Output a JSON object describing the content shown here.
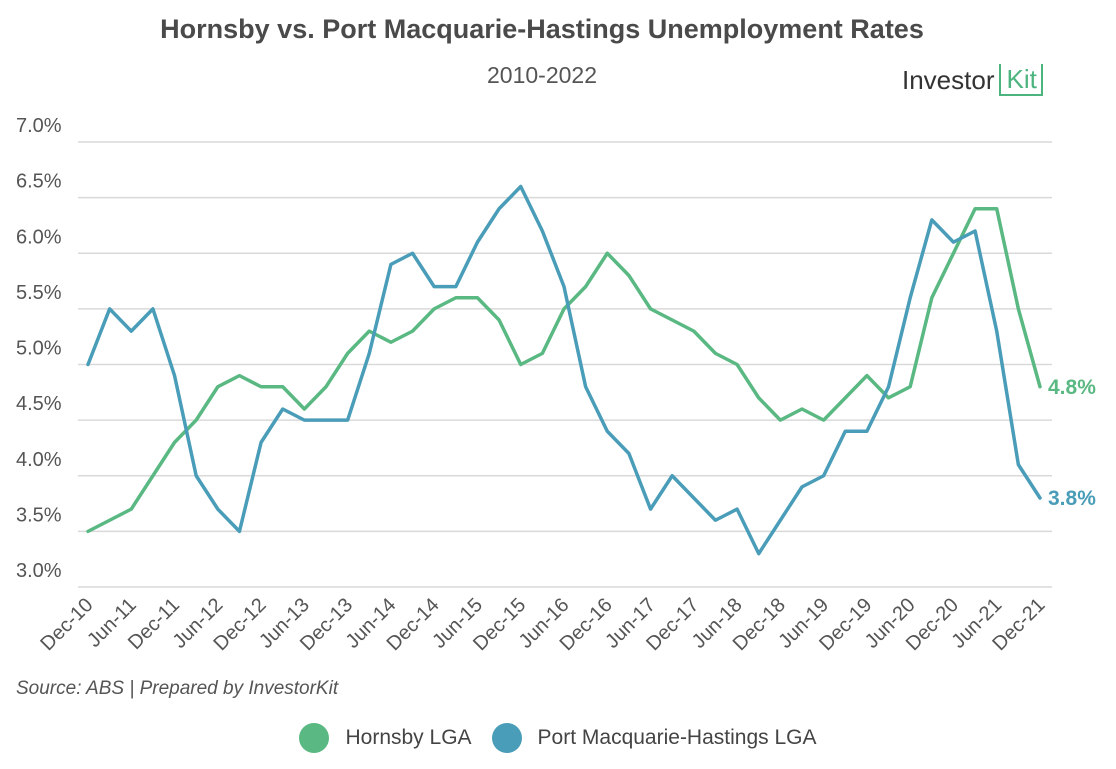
{
  "brand": {
    "name": "Investor",
    "mark": "Kit",
    "accent": "#4cb47e"
  },
  "source_note": "Source:  ABS | Prepared by InvestorKit",
  "chart_data": {
    "type": "line",
    "title": "Hornsby vs. Port Macquarie-Hastings Unemployment Rates",
    "subtitle": "2010-2022",
    "xlabel": "",
    "ylabel": "",
    "ylim": [
      3.0,
      7.0
    ],
    "y_ticks": [
      "3.0%",
      "3.5%",
      "4.0%",
      "4.5%",
      "5.0%",
      "5.5%",
      "6.0%",
      "6.5%",
      "7.0%"
    ],
    "grid": true,
    "x_tick_labels": [
      "Dec-10",
      "Jun-11",
      "Dec-11",
      "Jun-12",
      "Dec-12",
      "Jun-13",
      "Dec-13",
      "Jun-14",
      "Dec-14",
      "Jun-15",
      "Dec-15",
      "Jun-16",
      "Dec-16",
      "Jun-17",
      "Dec-17",
      "Jun-18",
      "Dec-18",
      "Jun-19",
      "Dec-19",
      "Jun-20",
      "Dec-20",
      "Jun-21",
      "Dec-21"
    ],
    "legend_position": "bottom",
    "series": [
      {
        "name": "Hornsby LGA",
        "color": "#5ab882",
        "end_label": "4.8%",
        "values": [
          3.5,
          3.6,
          3.7,
          4.0,
          4.3,
          4.5,
          4.8,
          4.9,
          4.8,
          4.8,
          4.6,
          4.8,
          5.1,
          5.3,
          5.2,
          5.3,
          5.5,
          5.6,
          5.6,
          5.4,
          5.0,
          5.1,
          5.5,
          5.7,
          6.0,
          5.8,
          5.5,
          5.4,
          5.3,
          5.1,
          5.0,
          4.7,
          4.5,
          4.6,
          4.5,
          4.7,
          4.9,
          4.7,
          4.8,
          5.6,
          6.0,
          6.4,
          6.4,
          5.5,
          4.8
        ]
      },
      {
        "name": "Port Macquarie-Hastings LGA",
        "color": "#4a9db8",
        "end_label": "3.8%",
        "values": [
          5.0,
          5.5,
          5.3,
          5.5,
          4.9,
          4.0,
          3.7,
          3.5,
          4.3,
          4.6,
          4.5,
          4.5,
          4.5,
          5.1,
          5.9,
          6.0,
          5.7,
          5.7,
          6.1,
          6.4,
          6.6,
          6.2,
          5.7,
          4.8,
          4.4,
          4.2,
          3.7,
          4.0,
          3.8,
          3.6,
          3.7,
          3.3,
          3.6,
          3.9,
          4.0,
          4.4,
          4.4,
          4.8,
          5.6,
          6.3,
          6.1,
          6.2,
          5.3,
          4.1,
          3.8
        ]
      }
    ]
  }
}
